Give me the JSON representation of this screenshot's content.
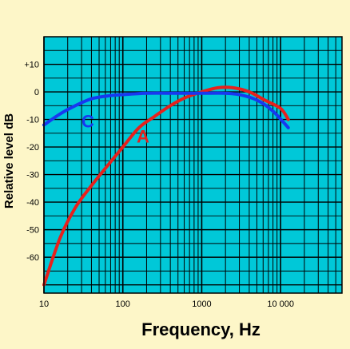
{
  "chart_data": {
    "type": "line",
    "title": "",
    "xlabel": "Frequency, Hz",
    "ylabel": "Relative level dB",
    "x_scale": "log",
    "xlim": [
      10,
      60000
    ],
    "ylim": [
      -73,
      20
    ],
    "grid": true,
    "x_tick_labels": [
      {
        "value": 10,
        "label": "10"
      },
      {
        "value": 100,
        "label": "100"
      },
      {
        "value": 1000,
        "label": "1000"
      },
      {
        "value": 10000,
        "label": "10 000"
      }
    ],
    "y_tick_labels": [
      {
        "value": 10,
        "label": "+10"
      },
      {
        "value": 0,
        "label": "0"
      },
      {
        "value": -10,
        "label": "-10"
      },
      {
        "value": -20,
        "label": "-20"
      },
      {
        "value": -30,
        "label": "-30"
      },
      {
        "value": -40,
        "label": "-40"
      },
      {
        "value": -50,
        "label": "-50"
      },
      {
        "value": -60,
        "label": "-60"
      }
    ],
    "colors": {
      "plot_background": "#00c8d8",
      "grid": "#000000",
      "page_background": "#fdf6c8"
    },
    "series": [
      {
        "name": "A",
        "color": "#e8201c",
        "x": [
          10,
          16,
          25,
          40,
          63,
          100,
          160,
          250,
          400,
          630,
          1000,
          1600,
          2500,
          4000,
          6300,
          10000,
          12500
        ],
        "y": [
          -70,
          -53,
          -42,
          -34,
          -27,
          -20,
          -13,
          -9,
          -5,
          -2,
          0,
          1.5,
          1.5,
          0,
          -3,
          -6,
          -10
        ]
      },
      {
        "name": "C",
        "color": "#1838f0",
        "x": [
          10,
          16,
          25,
          40,
          63,
          100,
          200,
          500,
          1000,
          2000,
          3000,
          5000,
          8000,
          12500
        ],
        "y": [
          -12,
          -8,
          -5,
          -2.5,
          -1.5,
          -1,
          -0.5,
          -0.5,
          -0.5,
          -0.5,
          -1,
          -3,
          -7,
          -13
        ]
      }
    ]
  }
}
